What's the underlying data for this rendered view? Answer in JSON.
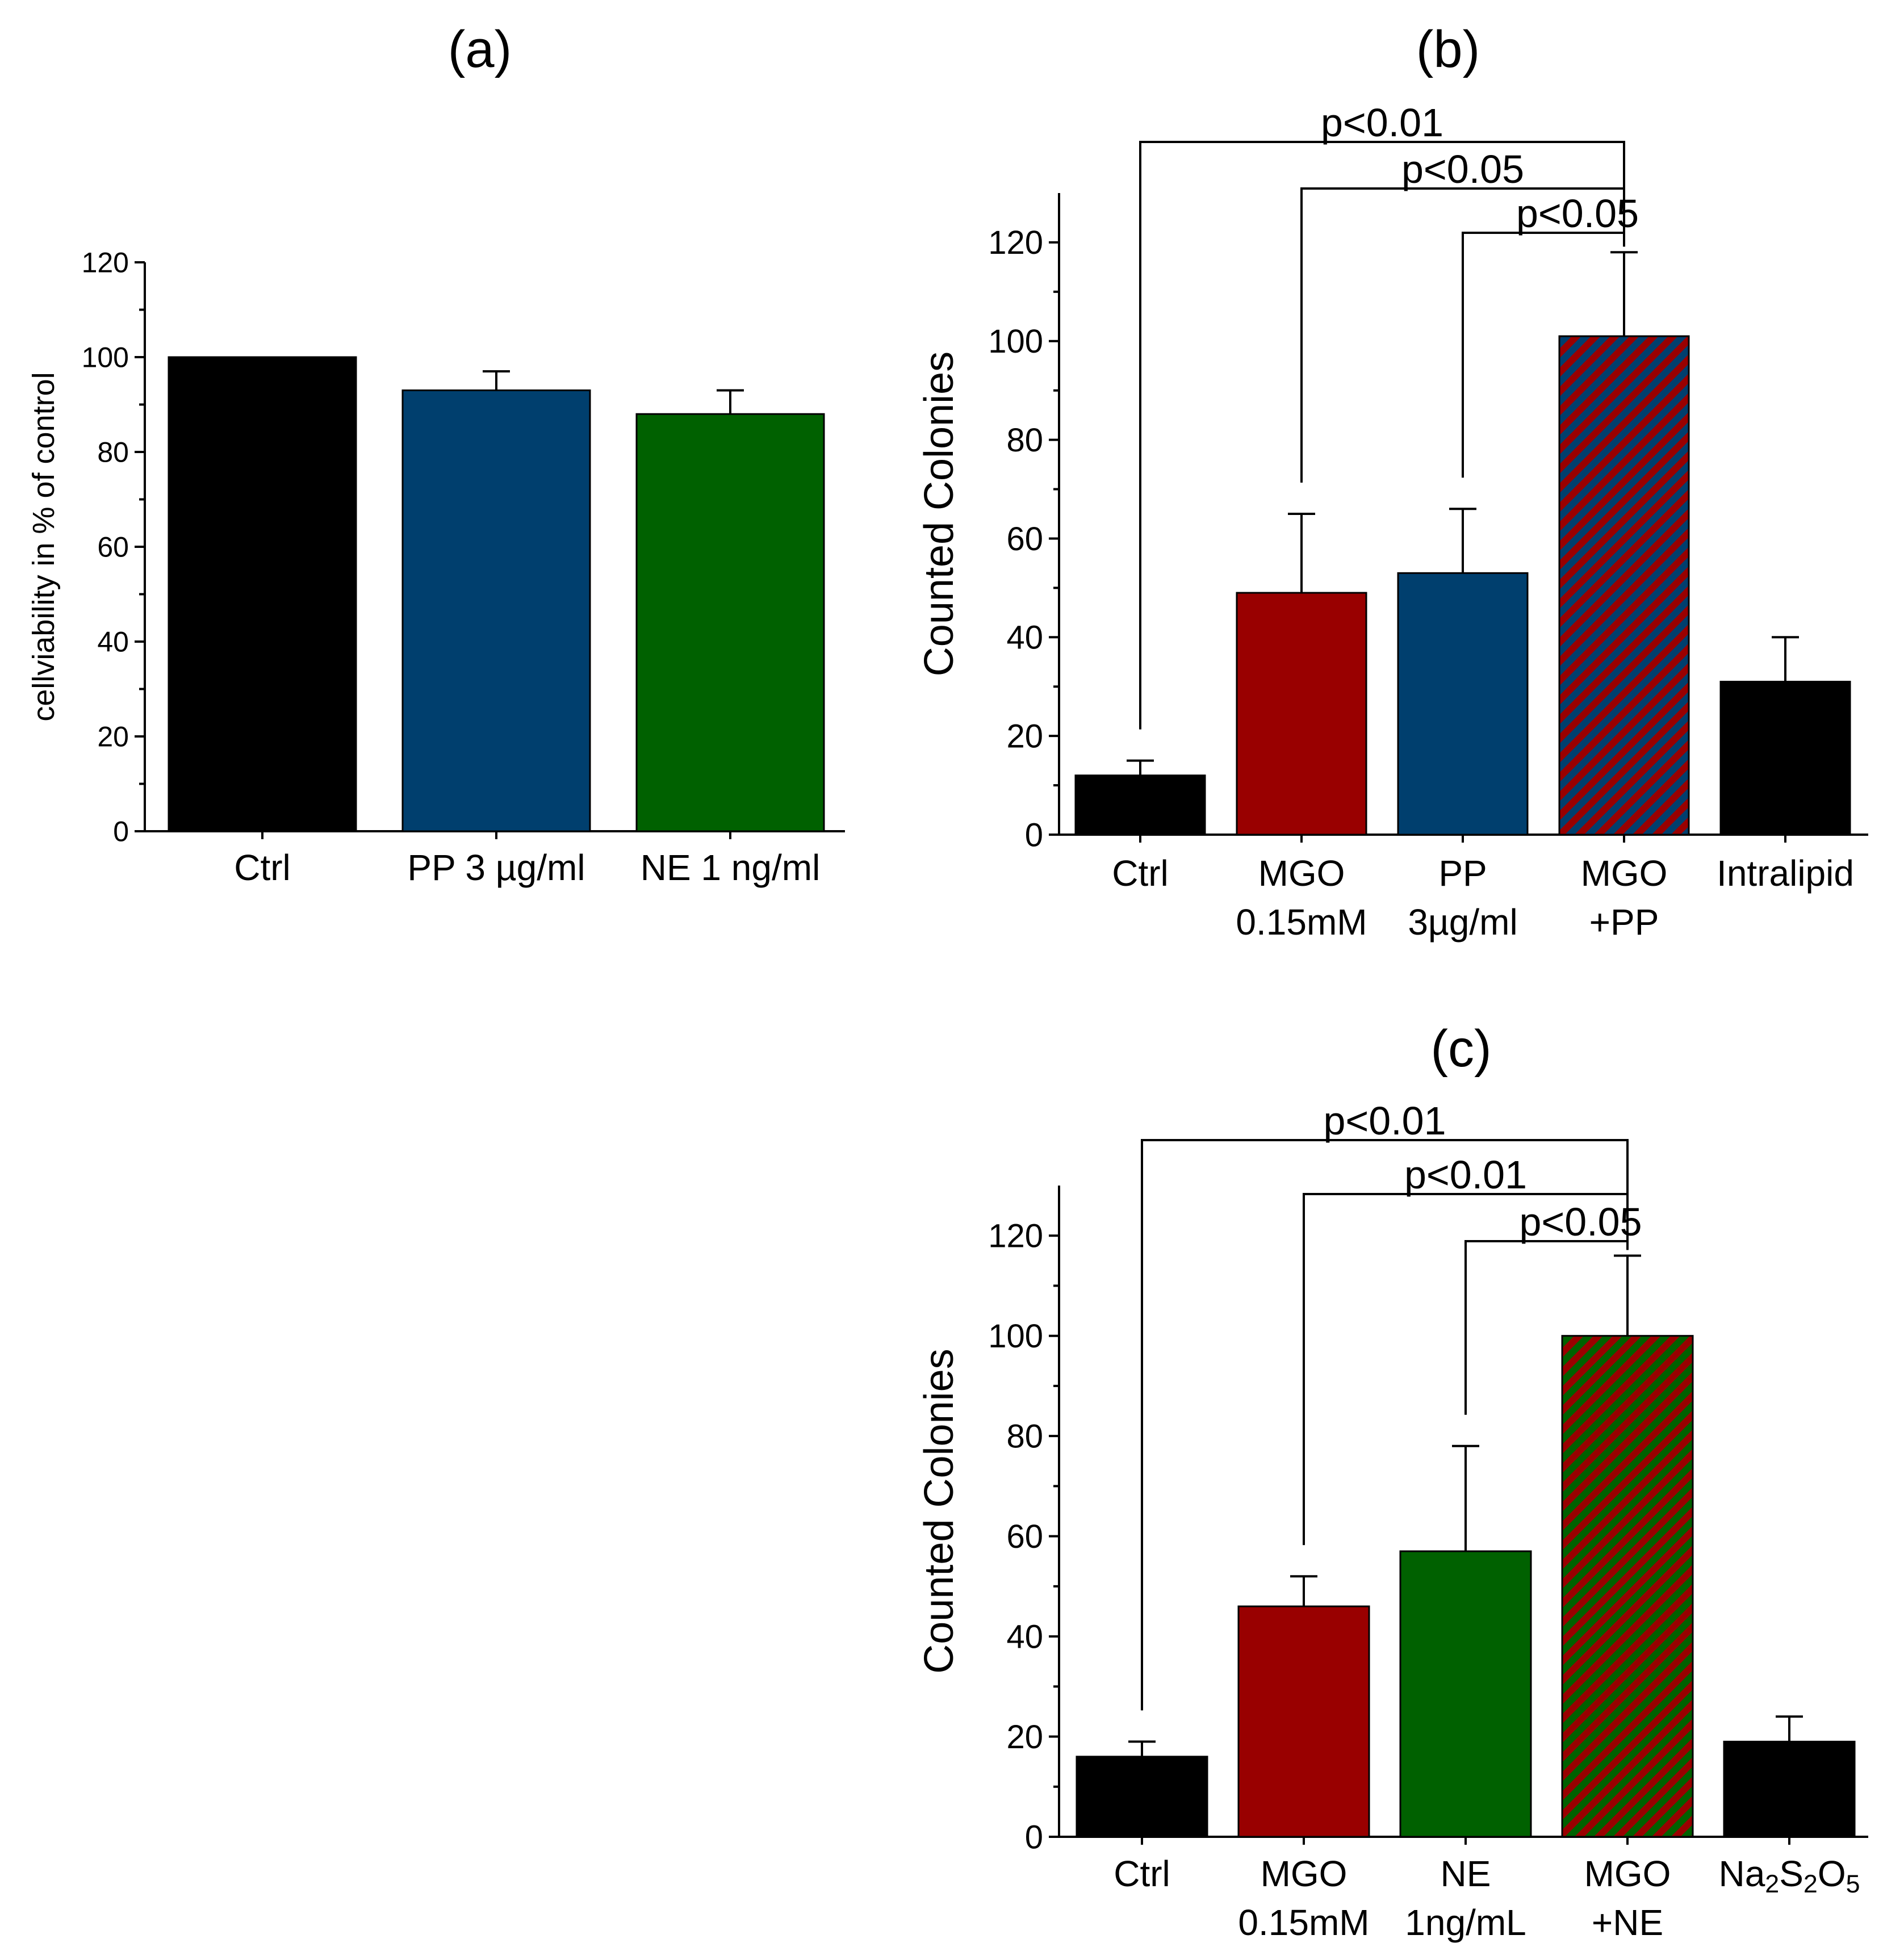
{
  "chart_data": [
    {
      "panel": "(a)",
      "type": "bar",
      "title": "(a)",
      "xlabel": "",
      "ylabel": "cellviability in % of control",
      "ylim": [
        0,
        120
      ],
      "yticks": [
        0,
        20,
        40,
        60,
        80,
        100,
        120
      ],
      "categories": [
        [
          "Ctrl"
        ],
        [
          "PP 3 µg/ml"
        ],
        [
          "NE 1 ng/ml"
        ]
      ],
      "values": [
        100,
        93,
        88
      ],
      "errors": [
        0,
        4,
        5
      ],
      "colors": [
        "#000000",
        "#003f6e",
        "#006100"
      ],
      "hatched": [
        false,
        false,
        false
      ],
      "significance": []
    },
    {
      "panel": "(b)",
      "type": "bar",
      "title": "(b)",
      "xlabel": "",
      "ylabel": "Counted Colonies",
      "ylim": [
        0,
        130
      ],
      "yticks": [
        0,
        20,
        40,
        60,
        80,
        100,
        120
      ],
      "categories": [
        [
          "Ctrl"
        ],
        [
          "MGO",
          "0.15mM"
        ],
        [
          "PP",
          "3µg/ml"
        ],
        [
          "MGO",
          "+PP"
        ],
        [
          "Intralipid"
        ]
      ],
      "values": [
        12,
        49,
        53,
        101,
        31
      ],
      "errors": [
        3,
        16,
        13,
        17,
        9
      ],
      "colors": [
        "#000000",
        "#990000",
        "#003f6e",
        "#003f6e",
        "#000000"
      ],
      "hatched": [
        false,
        false,
        false,
        true,
        false
      ],
      "hatch_color": "#990000",
      "significance": [
        {
          "from": 0,
          "to": 3,
          "label": "p<0.01"
        },
        {
          "from": 1,
          "to": 3,
          "label": "p<0.05"
        },
        {
          "from": 2,
          "to": 3,
          "label": "p<0.05"
        }
      ]
    },
    {
      "panel": "(c)",
      "type": "bar",
      "title": "(c)",
      "xlabel": "",
      "ylabel": "Counted Colonies",
      "ylim": [
        0,
        130
      ],
      "yticks": [
        0,
        20,
        40,
        60,
        80,
        100,
        120
      ],
      "categories": [
        [
          "Ctrl"
        ],
        [
          "MGO",
          "0.15mM"
        ],
        [
          "NE",
          "1ng/mL"
        ],
        [
          "MGO",
          "+NE"
        ],
        [
          "Na2S2O5"
        ]
      ],
      "values": [
        16,
        46,
        57,
        100,
        19
      ],
      "errors": [
        3,
        6,
        21,
        16,
        5
      ],
      "colors": [
        "#000000",
        "#990000",
        "#006100",
        "#006100",
        "#000000"
      ],
      "hatched": [
        false,
        false,
        false,
        true,
        false
      ],
      "hatch_color": "#990000",
      "significance": [
        {
          "from": 0,
          "to": 3,
          "label": "p<0.01"
        },
        {
          "from": 1,
          "to": 3,
          "label": "p<0.01"
        },
        {
          "from": 2,
          "to": 3,
          "label": "p<0.05"
        }
      ]
    }
  ]
}
